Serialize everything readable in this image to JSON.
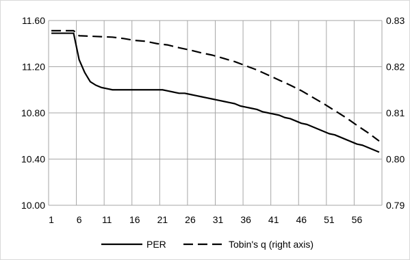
{
  "chart_data": {
    "type": "line",
    "title": "",
    "xlabel": "",
    "ylabel": "",
    "y2label": "",
    "x_start": 1,
    "x_end": 60,
    "x_ticks": [
      1,
      6,
      11,
      16,
      21,
      26,
      31,
      36,
      41,
      46,
      51,
      56
    ],
    "y_ticks": [
      "10.00",
      "10.40",
      "10.80",
      "11.20",
      "11.60"
    ],
    "y2_ticks": [
      "0.79",
      "0.80",
      "0.81",
      "0.82",
      "0.83"
    ],
    "ylim": [
      10.0,
      11.6
    ],
    "y2lim": [
      0.79,
      0.83
    ],
    "grid": true,
    "legend_position": "bottom",
    "series": [
      {
        "name": "PER",
        "axis": "left",
        "style": "solid",
        "color": "#000000",
        "points": [
          [
            1,
            11.49
          ],
          [
            2,
            11.49
          ],
          [
            3,
            11.49
          ],
          [
            4,
            11.49
          ],
          [
            5,
            11.49
          ],
          [
            6,
            11.26
          ],
          [
            7,
            11.15
          ],
          [
            8,
            11.07
          ],
          [
            9,
            11.04
          ],
          [
            10,
            11.02
          ],
          [
            11,
            11.01
          ],
          [
            12,
            11.0
          ],
          [
            13,
            11.0
          ],
          [
            14,
            11.0
          ],
          [
            15,
            11.0
          ],
          [
            16,
            11.0
          ],
          [
            17,
            11.0
          ],
          [
            18,
            11.0
          ],
          [
            19,
            11.0
          ],
          [
            20,
            11.0
          ],
          [
            21,
            11.0
          ],
          [
            22,
            10.99
          ],
          [
            23,
            10.98
          ],
          [
            24,
            10.97
          ],
          [
            25,
            10.97
          ],
          [
            26,
            10.96
          ],
          [
            27,
            10.95
          ],
          [
            28,
            10.94
          ],
          [
            29,
            10.93
          ],
          [
            30,
            10.92
          ],
          [
            31,
            10.91
          ],
          [
            32,
            10.9
          ],
          [
            33,
            10.89
          ],
          [
            34,
            10.88
          ],
          [
            35,
            10.86
          ],
          [
            36,
            10.85
          ],
          [
            37,
            10.84
          ],
          [
            38,
            10.83
          ],
          [
            39,
            10.81
          ],
          [
            40,
            10.8
          ],
          [
            41,
            10.79
          ],
          [
            42,
            10.78
          ],
          [
            43,
            10.76
          ],
          [
            44,
            10.75
          ],
          [
            45,
            10.73
          ],
          [
            46,
            10.71
          ],
          [
            47,
            10.7
          ],
          [
            48,
            10.68
          ],
          [
            49,
            10.66
          ],
          [
            50,
            10.64
          ],
          [
            51,
            10.62
          ],
          [
            52,
            10.61
          ],
          [
            53,
            10.59
          ],
          [
            54,
            10.57
          ],
          [
            55,
            10.55
          ],
          [
            56,
            10.53
          ],
          [
            57,
            10.52
          ],
          [
            58,
            10.5
          ],
          [
            59,
            10.48
          ],
          [
            60,
            10.46
          ]
        ]
      },
      {
        "name": "Tobin's q (right axis)",
        "axis": "right",
        "style": "dashed",
        "color": "#000000",
        "points": [
          [
            1,
            0.8278
          ],
          [
            5,
            0.8278
          ],
          [
            6,
            0.8267
          ],
          [
            8,
            0.8266
          ],
          [
            10,
            0.8265
          ],
          [
            12,
            0.8264
          ],
          [
            14,
            0.8261
          ],
          [
            16,
            0.8257
          ],
          [
            18,
            0.8255
          ],
          [
            20,
            0.825
          ],
          [
            22,
            0.8247
          ],
          [
            24,
            0.8241
          ],
          [
            26,
            0.8236
          ],
          [
            28,
            0.823
          ],
          [
            30,
            0.8225
          ],
          [
            32,
            0.8218
          ],
          [
            34,
            0.8211
          ],
          [
            36,
            0.8202
          ],
          [
            38,
            0.8193
          ],
          [
            40,
            0.8182
          ],
          [
            42,
            0.8171
          ],
          [
            44,
            0.816
          ],
          [
            46,
            0.8148
          ],
          [
            48,
            0.8134
          ],
          [
            50,
            0.812
          ],
          [
            52,
            0.8105
          ],
          [
            54,
            0.809
          ],
          [
            56,
            0.8073
          ],
          [
            58,
            0.8057
          ],
          [
            60,
            0.8039
          ]
        ]
      }
    ]
  }
}
